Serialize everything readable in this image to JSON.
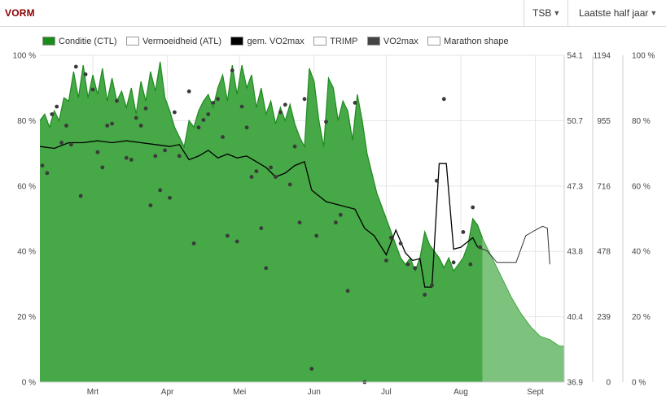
{
  "header": {
    "title": "VORM",
    "metric_selector": "TSB",
    "period_selector": "Laatste half jaar"
  },
  "legend": [
    {
      "label": "Conditie (CTL)",
      "color": "#1a8c1a",
      "filled": true
    },
    {
      "label": "Vermoeidheid (ATL)",
      "color": "#ffffff",
      "filled": false
    },
    {
      "label": "gem. VO2max",
      "color": "#000000",
      "filled": true
    },
    {
      "label": "TRIMP",
      "color": "#ffffff",
      "filled": false
    },
    {
      "label": "VO2max",
      "color": "#444444",
      "filled": true
    },
    {
      "label": "Marathon shape",
      "color": "#ffffff",
      "filled": false
    }
  ],
  "colors": {
    "condition_fill": "#47a847",
    "condition_line": "#1e8a1e",
    "forecast_fill": "#7dc27d",
    "avg_vo2max_line": "#000000",
    "forecast_line": "#333333",
    "vo2max_points": "#3a3a3a",
    "grid": "#e6e6e6"
  },
  "chart_data": {
    "type": "area",
    "x_axis": {
      "type": "date",
      "range": [
        "2024-02-08",
        "2024-09-13"
      ],
      "tick_labels": [
        "Mrt",
        "Apr",
        "Mei",
        "Jun",
        "Jul",
        "Aug",
        "Sept"
      ],
      "tick_dates": [
        "2024-03-01",
        "2024-04-01",
        "2024-05-01",
        "2024-06-01",
        "2024-07-01",
        "2024-08-01",
        "2024-09-01"
      ]
    },
    "y_axes": [
      {
        "position": "left",
        "unit": "%",
        "range": [
          0,
          100
        ],
        "ticks": [
          "0 %",
          "20 %",
          "40 %",
          "60 %",
          "80 %",
          "100 %"
        ]
      },
      {
        "position": "right",
        "range": [
          36.9,
          54.1
        ],
        "ticks": [
          "36.9",
          "40.4",
          "43.8",
          "47.3",
          "50.7",
          "54.1"
        ]
      },
      {
        "position": "right",
        "range": [
          0,
          1194
        ],
        "ticks": [
          "0",
          "239",
          "478",
          "716",
          "955",
          "1194"
        ]
      },
      {
        "position": "right",
        "unit": "%",
        "range": [
          0,
          100
        ],
        "ticks": [
          "0 %",
          "20 %",
          "40 %",
          "60 %",
          "80 %",
          "100 %"
        ]
      }
    ],
    "grid": true,
    "legend_position": "top-left",
    "series": [
      {
        "name": "Conditie (CTL)",
        "type": "area",
        "axis": "left",
        "points": [
          [
            "2024-02-08",
            80
          ],
          [
            "2024-02-10",
            82
          ],
          [
            "2024-02-12",
            78
          ],
          [
            "2024-02-14",
            83
          ],
          [
            "2024-02-16",
            80
          ],
          [
            "2024-02-18",
            87
          ],
          [
            "2024-02-20",
            86
          ],
          [
            "2024-02-22",
            95
          ],
          [
            "2024-02-24",
            87
          ],
          [
            "2024-02-26",
            97
          ],
          [
            "2024-02-28",
            87
          ],
          [
            "2024-03-01",
            94
          ],
          [
            "2024-03-03",
            88
          ],
          [
            "2024-03-05",
            96
          ],
          [
            "2024-03-07",
            86
          ],
          [
            "2024-03-09",
            93
          ],
          [
            "2024-03-11",
            86
          ],
          [
            "2024-03-13",
            89
          ],
          [
            "2024-03-15",
            84
          ],
          [
            "2024-03-17",
            90
          ],
          [
            "2024-03-19",
            82
          ],
          [
            "2024-03-21",
            92
          ],
          [
            "2024-03-23",
            86
          ],
          [
            "2024-03-25",
            95
          ],
          [
            "2024-03-27",
            89
          ],
          [
            "2024-03-29",
            98
          ],
          [
            "2024-03-31",
            87
          ],
          [
            "2024-04-02",
            83
          ],
          [
            "2024-04-04",
            78
          ],
          [
            "2024-04-06",
            75
          ],
          [
            "2024-04-08",
            72
          ],
          [
            "2024-04-10",
            80
          ],
          [
            "2024-04-12",
            78
          ],
          [
            "2024-04-14",
            83
          ],
          [
            "2024-04-16",
            86
          ],
          [
            "2024-04-18",
            88
          ],
          [
            "2024-04-20",
            84
          ],
          [
            "2024-04-22",
            90
          ],
          [
            "2024-04-24",
            94
          ],
          [
            "2024-04-26",
            86
          ],
          [
            "2024-04-28",
            97
          ],
          [
            "2024-04-30",
            88
          ],
          [
            "2024-05-02",
            97
          ],
          [
            "2024-05-04",
            90
          ],
          [
            "2024-05-06",
            94
          ],
          [
            "2024-05-08",
            84
          ],
          [
            "2024-05-10",
            90
          ],
          [
            "2024-05-12",
            82
          ],
          [
            "2024-05-14",
            86
          ],
          [
            "2024-05-16",
            79
          ],
          [
            "2024-05-18",
            84
          ],
          [
            "2024-05-20",
            80
          ],
          [
            "2024-05-22",
            85
          ],
          [
            "2024-05-24",
            79
          ],
          [
            "2024-05-26",
            75
          ],
          [
            "2024-05-28",
            72
          ],
          [
            "2024-05-30",
            96
          ],
          [
            "2024-06-01",
            92
          ],
          [
            "2024-06-03",
            80
          ],
          [
            "2024-06-05",
            72
          ],
          [
            "2024-06-07",
            93
          ],
          [
            "2024-06-09",
            90
          ],
          [
            "2024-06-11",
            80
          ],
          [
            "2024-06-13",
            86
          ],
          [
            "2024-06-15",
            83
          ],
          [
            "2024-06-17",
            74
          ],
          [
            "2024-06-19",
            88
          ],
          [
            "2024-06-21",
            80
          ],
          [
            "2024-06-23",
            70
          ],
          [
            "2024-06-25",
            64
          ],
          [
            "2024-06-27",
            58
          ],
          [
            "2024-06-29",
            54
          ],
          [
            "2024-07-01",
            50
          ],
          [
            "2024-07-03",
            46
          ],
          [
            "2024-07-05",
            42
          ],
          [
            "2024-07-07",
            38
          ],
          [
            "2024-07-09",
            36
          ],
          [
            "2024-07-11",
            38
          ],
          [
            "2024-07-13",
            34
          ],
          [
            "2024-07-15",
            38
          ],
          [
            "2024-07-17",
            46
          ],
          [
            "2024-07-19",
            42
          ],
          [
            "2024-07-21",
            40
          ],
          [
            "2024-07-23",
            38
          ],
          [
            "2024-07-25",
            35
          ],
          [
            "2024-07-27",
            38
          ],
          [
            "2024-07-29",
            34
          ],
          [
            "2024-07-31",
            36
          ],
          [
            "2024-08-02",
            38
          ],
          [
            "2024-08-04",
            42
          ],
          [
            "2024-08-06",
            50
          ],
          [
            "2024-08-08",
            48
          ],
          [
            "2024-08-10",
            44
          ]
        ]
      },
      {
        "name": "Marathon shape",
        "type": "forecast-area",
        "axis": "left",
        "points": [
          [
            "2024-08-10",
            44
          ],
          [
            "2024-08-14",
            38
          ],
          [
            "2024-08-18",
            32
          ],
          [
            "2024-08-22",
            26
          ],
          [
            "2024-08-26",
            21
          ],
          [
            "2024-08-30",
            17
          ],
          [
            "2024-09-03",
            14
          ],
          [
            "2024-09-07",
            13
          ],
          [
            "2024-09-11",
            11
          ],
          [
            "2024-09-13",
            11
          ]
        ]
      },
      {
        "name": "gem. VO2max",
        "type": "line",
        "axis": "right-1",
        "points": [
          [
            "2024-02-08",
            49.3
          ],
          [
            "2024-02-14",
            49.2
          ],
          [
            "2024-02-20",
            49.5
          ],
          [
            "2024-02-26",
            49.5
          ],
          [
            "2024-03-03",
            49.6
          ],
          [
            "2024-03-09",
            49.5
          ],
          [
            "2024-03-15",
            49.6
          ],
          [
            "2024-03-21",
            49.5
          ],
          [
            "2024-03-27",
            49.4
          ],
          [
            "2024-04-02",
            49.3
          ],
          [
            "2024-04-06",
            49.4
          ],
          [
            "2024-04-10",
            48.6
          ],
          [
            "2024-04-14",
            48.8
          ],
          [
            "2024-04-18",
            49.1
          ],
          [
            "2024-04-22",
            48.7
          ],
          [
            "2024-04-26",
            48.9
          ],
          [
            "2024-04-30",
            48.7
          ],
          [
            "2024-05-04",
            48.8
          ],
          [
            "2024-05-08",
            48.5
          ],
          [
            "2024-05-12",
            48.2
          ],
          [
            "2024-05-16",
            47.7
          ],
          [
            "2024-05-20",
            47.9
          ],
          [
            "2024-05-24",
            48.3
          ],
          [
            "2024-05-28",
            48.5
          ],
          [
            "2024-05-31",
            47.0
          ],
          [
            "2024-06-06",
            46.4
          ],
          [
            "2024-06-12",
            46.2
          ],
          [
            "2024-06-18",
            46.0
          ],
          [
            "2024-06-22",
            45.0
          ],
          [
            "2024-06-26",
            44.6
          ],
          [
            "2024-07-01",
            43.6
          ],
          [
            "2024-07-05",
            44.9
          ],
          [
            "2024-07-09",
            43.7
          ],
          [
            "2024-07-12",
            43.3
          ],
          [
            "2024-07-15",
            43.4
          ],
          [
            "2024-07-17",
            41.9
          ],
          [
            "2024-07-20",
            41.9
          ],
          [
            "2024-07-23",
            48.4
          ],
          [
            "2024-07-26",
            48.4
          ],
          [
            "2024-07-29",
            43.9
          ],
          [
            "2024-08-01",
            44.0
          ],
          [
            "2024-08-04",
            44.3
          ],
          [
            "2024-08-06",
            44.5
          ],
          [
            "2024-08-08",
            44.0
          ]
        ]
      },
      {
        "name": "gem. VO2max (forecast)",
        "type": "line",
        "axis": "right-1",
        "points": [
          [
            "2024-08-08",
            44.0
          ],
          [
            "2024-08-12",
            43.8
          ],
          [
            "2024-08-16",
            43.2
          ],
          [
            "2024-08-20",
            43.2
          ],
          [
            "2024-08-24",
            43.2
          ],
          [
            "2024-08-28",
            44.6
          ],
          [
            "2024-09-01",
            44.9
          ],
          [
            "2024-09-04",
            45.1
          ],
          [
            "2024-09-06",
            45.0
          ],
          [
            "2024-09-07",
            43.1
          ]
        ]
      },
      {
        "name": "VO2max",
        "type": "scatter",
        "axis": "right-1",
        "points": [
          [
            "2024-02-09",
            48.3
          ],
          [
            "2024-02-11",
            47.9
          ],
          [
            "2024-02-13",
            51.0
          ],
          [
            "2024-02-15",
            51.4
          ],
          [
            "2024-02-17",
            49.5
          ],
          [
            "2024-02-19",
            50.4
          ],
          [
            "2024-02-21",
            49.4
          ],
          [
            "2024-02-23",
            53.5
          ],
          [
            "2024-02-25",
            46.7
          ],
          [
            "2024-02-27",
            53.1
          ],
          [
            "2024-03-01",
            52.3
          ],
          [
            "2024-03-03",
            49.0
          ],
          [
            "2024-03-05",
            48.2
          ],
          [
            "2024-03-07",
            50.4
          ],
          [
            "2024-03-09",
            50.5
          ],
          [
            "2024-03-11",
            51.7
          ],
          [
            "2024-03-15",
            48.7
          ],
          [
            "2024-03-17",
            48.6
          ],
          [
            "2024-03-19",
            50.8
          ],
          [
            "2024-03-21",
            50.4
          ],
          [
            "2024-03-23",
            51.3
          ],
          [
            "2024-03-25",
            46.2
          ],
          [
            "2024-03-27",
            48.8
          ],
          [
            "2024-03-29",
            47.0
          ],
          [
            "2024-03-31",
            49.1
          ],
          [
            "2024-04-02",
            46.6
          ],
          [
            "2024-04-04",
            51.1
          ],
          [
            "2024-04-06",
            48.8
          ],
          [
            "2024-04-10",
            52.2
          ],
          [
            "2024-04-12",
            44.2
          ],
          [
            "2024-04-14",
            50.3
          ],
          [
            "2024-04-16",
            50.7
          ],
          [
            "2024-04-18",
            51.0
          ],
          [
            "2024-04-20",
            51.6
          ],
          [
            "2024-04-22",
            51.8
          ],
          [
            "2024-04-24",
            49.8
          ],
          [
            "2024-04-26",
            44.6
          ],
          [
            "2024-04-28",
            53.3
          ],
          [
            "2024-04-30",
            44.3
          ],
          [
            "2024-05-02",
            51.4
          ],
          [
            "2024-05-04",
            50.3
          ],
          [
            "2024-05-06",
            47.7
          ],
          [
            "2024-05-08",
            48.0
          ],
          [
            "2024-05-10",
            45.0
          ],
          [
            "2024-05-12",
            42.9
          ],
          [
            "2024-05-14",
            48.2
          ],
          [
            "2024-05-16",
            47.7
          ],
          [
            "2024-05-18",
            51.1
          ],
          [
            "2024-05-20",
            51.5
          ],
          [
            "2024-05-22",
            47.3
          ],
          [
            "2024-05-24",
            49.3
          ],
          [
            "2024-05-26",
            45.3
          ],
          [
            "2024-05-28",
            51.8
          ],
          [
            "2024-05-31",
            37.6
          ],
          [
            "2024-06-02",
            44.6
          ],
          [
            "2024-06-06",
            50.6
          ],
          [
            "2024-06-10",
            45.3
          ],
          [
            "2024-06-12",
            45.7
          ],
          [
            "2024-06-15",
            41.7
          ],
          [
            "2024-06-18",
            51.6
          ],
          [
            "2024-06-22",
            36.9
          ],
          [
            "2024-07-01",
            43.3
          ],
          [
            "2024-07-03",
            44.5
          ],
          [
            "2024-07-07",
            44.2
          ],
          [
            "2024-07-10",
            43.1
          ],
          [
            "2024-07-13",
            42.9
          ],
          [
            "2024-07-17",
            41.5
          ],
          [
            "2024-07-20",
            42.0
          ],
          [
            "2024-07-22",
            47.5
          ],
          [
            "2024-07-25",
            51.8
          ],
          [
            "2024-07-29",
            43.2
          ],
          [
            "2024-08-02",
            44.8
          ],
          [
            "2024-08-05",
            43.1
          ],
          [
            "2024-08-06",
            46.1
          ],
          [
            "2024-08-09",
            44.0
          ]
        ]
      }
    ]
  }
}
